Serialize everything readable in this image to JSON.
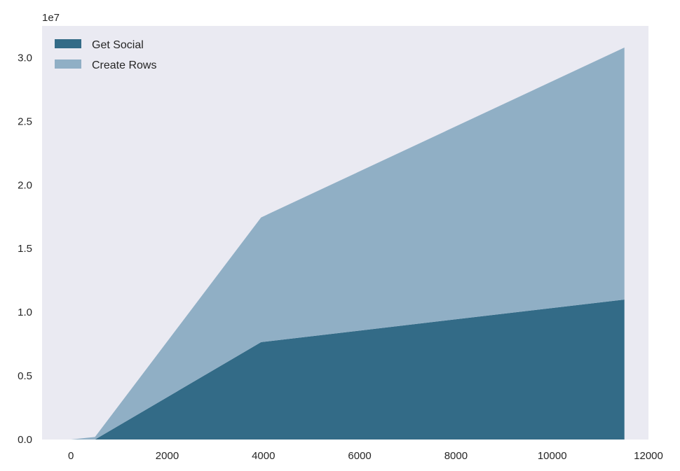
{
  "chart_data": {
    "type": "area",
    "stacked": true,
    "x": [
      0,
      500,
      3950,
      11500
    ],
    "series": [
      {
        "name": "Get Social",
        "values": [
          0,
          0,
          7650000,
          11000000
        ],
        "color": "#336b87"
      },
      {
        "name": "Create Rows",
        "values": [
          0,
          200000,
          9800000,
          19800000
        ],
        "color": "#90afc5"
      }
    ],
    "xlim": [
      -600,
      12000
    ],
    "ylim": [
      0,
      32500000
    ],
    "xticks": [
      0,
      2000,
      4000,
      6000,
      8000,
      10000,
      12000
    ],
    "yticks": [
      0,
      5000000,
      10000000,
      15000000,
      20000000,
      25000000,
      30000000
    ],
    "xtick_labels": [
      "0",
      "2000",
      "4000",
      "6000",
      "8000",
      "10000",
      "12000"
    ],
    "ytick_labels": [
      "0.0",
      "0.5",
      "1.0",
      "1.5",
      "2.0",
      "2.5",
      "3.0"
    ],
    "y_offset_label": "1e7",
    "title": "",
    "xlabel": "",
    "ylabel": "",
    "grid": false,
    "legend_position": "top-left",
    "background_color": "#eaeaf2"
  }
}
